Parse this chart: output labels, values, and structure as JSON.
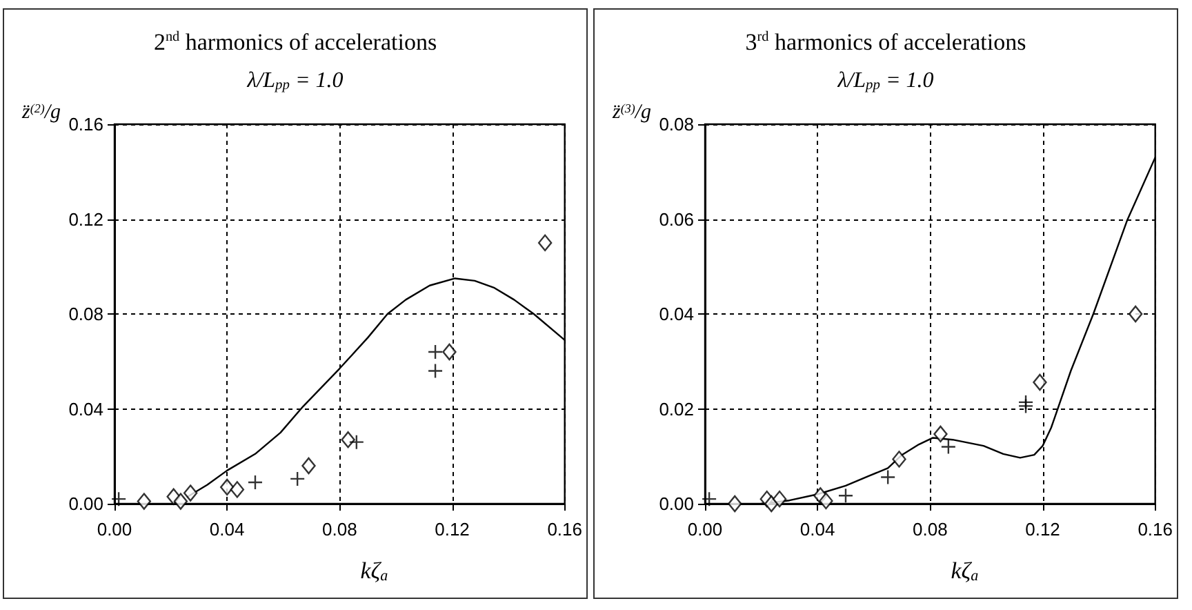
{
  "chart_data": [
    {
      "type": "scatter",
      "title": "2$^{nd}$ harmonics of accelerations",
      "subtitle": "λ/L$_{pp}$ = 1.0",
      "xlabel": "kζ$_{a}$",
      "ylabel": "z̈$^{(2)}$/g",
      "xlim": [
        0,
        0.16
      ],
      "ylim": [
        0,
        0.16
      ],
      "xticks": [
        {
          "value": 0,
          "label": "0.00"
        },
        {
          "value": 0.04,
          "label": "0.04"
        },
        {
          "value": 0.08,
          "label": "0.08"
        },
        {
          "value": 0.12,
          "label": "0.12"
        },
        {
          "value": 0.16,
          "label": "0.16"
        }
      ],
      "yticks": [
        {
          "value": 0,
          "label": "0.00"
        },
        {
          "value": 0.04,
          "label": "0.04"
        },
        {
          "value": 0.08,
          "label": "0.08"
        },
        {
          "value": 0.12,
          "label": "0.12"
        },
        {
          "value": 0.16,
          "label": "0.16"
        }
      ],
      "grid": true,
      "series": [
        {
          "type": "scatter",
          "marker": "diamond",
          "color": "#000000",
          "x": [
            0.0105,
            0.021,
            0.0235,
            0.027,
            0.04,
            0.0436,
            0.069,
            0.083,
            0.119,
            0.153
          ],
          "values": [
            0.001,
            0.003,
            0.001,
            0.0045,
            0.007,
            0.006,
            0.016,
            0.027,
            0.064,
            0.11
          ]
        },
        {
          "type": "scatter",
          "marker": "cross",
          "color": "#000000",
          "x": [
            0.0015,
            0.05,
            0.065,
            0.086,
            0.114,
            0.114
          ],
          "values": [
            0.002,
            0.009,
            0.0105,
            0.026,
            0.064,
            0.056
          ]
        },
        {
          "type": "line",
          "line_style": "solid",
          "color": "#000000",
          "x": [
            0.026,
            0.033,
            0.04,
            0.05,
            0.059,
            0.067,
            0.08,
            0.09,
            0.097,
            0.1035,
            0.112,
            0.121,
            0.128,
            0.135,
            0.142,
            0.149,
            0.16
          ],
          "values": [
            0.003,
            0.008,
            0.014,
            0.021,
            0.03,
            0.041,
            0.057,
            0.07,
            0.08,
            0.086,
            0.092,
            0.095,
            0.094,
            0.091,
            0.086,
            0.08,
            0.069
          ]
        }
      ]
    },
    {
      "type": "scatter",
      "title": "3$^{rd}$ harmonics of accelerations",
      "subtitle": "λ/L$_{pp}$ = 1.0",
      "xlabel": "kζ$_{a}$",
      "ylabel": "z̈$^{(3)}$/g",
      "xlim": [
        0,
        0.16
      ],
      "ylim": [
        0,
        0.08
      ],
      "xticks": [
        {
          "value": 0,
          "label": "0.00"
        },
        {
          "value": 0.04,
          "label": "0.04"
        },
        {
          "value": 0.08,
          "label": "0.08"
        },
        {
          "value": 0.12,
          "label": "0.12"
        },
        {
          "value": 0.16,
          "label": "0.16"
        }
      ],
      "yticks": [
        {
          "value": 0,
          "label": "0.00"
        },
        {
          "value": 0.02,
          "label": "0.02"
        },
        {
          "value": 0.04,
          "label": "0.04"
        },
        {
          "value": 0.06,
          "label": "0.06"
        },
        {
          "value": 0.08,
          "label": "0.08"
        }
      ],
      "grid": true,
      "series": [
        {
          "type": "scatter",
          "marker": "diamond",
          "color": "#000000",
          "x": [
            0.0106,
            0.022,
            0.0236,
            0.0265,
            0.041,
            0.043,
            0.069,
            0.0837,
            0.119,
            0.153
          ],
          "values": [
            0,
            0.001,
            0,
            0.001,
            0.0017,
            0.0006,
            0.0094,
            0.0147,
            0.0256,
            0.04
          ]
        },
        {
          "type": "scatter",
          "marker": "cross",
          "color": "#000000",
          "x": [
            0.0015,
            0.05,
            0.065,
            0.0865,
            0.114,
            0.114
          ],
          "values": [
            0.001,
            0.0017,
            0.0056,
            0.012,
            0.0214,
            0.0206
          ]
        },
        {
          "type": "line",
          "line_style": "solid",
          "color": "#000000",
          "x": [
            0.02,
            0.03,
            0.04,
            0.05,
            0.058,
            0.065,
            0.07,
            0.076,
            0.081,
            0.088,
            0.099,
            0.106,
            0.112,
            0.117,
            0.12,
            0.123,
            0.125,
            0.13,
            0.138,
            0.15,
            0.16
          ],
          "values": [
            0,
            0.0007,
            0.002,
            0.0038,
            0.0058,
            0.0075,
            0.0103,
            0.0125,
            0.0139,
            0.0135,
            0.0122,
            0.0105,
            0.0097,
            0.0103,
            0.0122,
            0.016,
            0.0194,
            0.028,
            0.04,
            0.0597,
            0.073
          ]
        }
      ]
    }
  ]
}
